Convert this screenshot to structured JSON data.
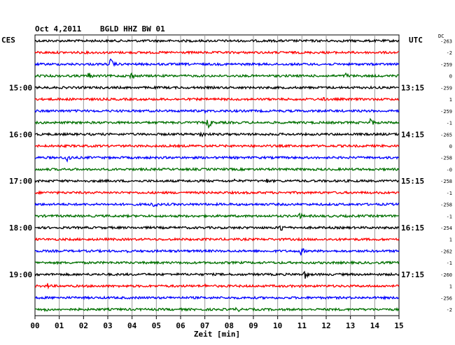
{
  "header": {
    "date": "Oct 4,2011",
    "station": "BGLD HHZ BW 01",
    "left_tz": "CES",
    "right_tz": "UTC",
    "dc_label": "DC"
  },
  "chart_data": {
    "type": "line",
    "title": "Oct 4,2011  BGLD HHZ BW 01",
    "xlabel": "Zeit [min]",
    "ylabel": "",
    "x_ticks": [
      "00",
      "01",
      "02",
      "03",
      "04",
      "05",
      "06",
      "07",
      "08",
      "09",
      "10",
      "11",
      "12",
      "13",
      "14",
      "15"
    ],
    "xlim": [
      0,
      15
    ],
    "grid": true,
    "trace_colors": [
      "#000000",
      "#ff0000",
      "#0000ff",
      "#007000"
    ],
    "left_time_labels": [
      {
        "row": 4,
        "label": "15:00"
      },
      {
        "row": 8,
        "label": "16:00"
      },
      {
        "row": 12,
        "label": "17:00"
      },
      {
        "row": 16,
        "label": "18:00"
      },
      {
        "row": 20,
        "label": "19:00"
      }
    ],
    "right_time_labels": [
      {
        "row": 4,
        "label": "13:15"
      },
      {
        "row": 8,
        "label": "14:15"
      },
      {
        "row": 12,
        "label": "15:15"
      },
      {
        "row": 16,
        "label": "16:15"
      },
      {
        "row": 20,
        "label": "17:15"
      }
    ],
    "dc_offsets": [
      "-263",
      "-2",
      "-259",
      "0",
      "-259",
      "1",
      "-259",
      "-1",
      "-265",
      "0",
      "-258",
      "-0",
      "-258",
      "-1",
      "-258",
      "-1",
      "-254",
      "1",
      "-262",
      "-1",
      "-260",
      "1",
      "-256",
      "-2"
    ],
    "events": [
      {
        "row": 2,
        "minute": 3.1,
        "amp": 9
      },
      {
        "row": 3,
        "minute": 2.2,
        "amp": 6
      },
      {
        "row": 3,
        "minute": 3.9,
        "amp": 8
      },
      {
        "row": 3,
        "minute": 12.8,
        "amp": 5
      },
      {
        "row": 5,
        "minute": 11.8,
        "amp": 5
      },
      {
        "row": 6,
        "minute": 7.0,
        "amp": 3
      },
      {
        "row": 7,
        "minute": 7.1,
        "amp": 10
      },
      {
        "row": 7,
        "minute": 13.8,
        "amp": 7
      },
      {
        "row": 8,
        "minute": 6.8,
        "amp": 8
      },
      {
        "row": 10,
        "minute": 1.3,
        "amp": 9
      },
      {
        "row": 10,
        "minute": 8.3,
        "amp": 3
      },
      {
        "row": 12,
        "minute": 9.5,
        "amp": 5
      },
      {
        "row": 12,
        "minute": 8.2,
        "amp": 3
      },
      {
        "row": 14,
        "minute": 4.8,
        "amp": 9
      },
      {
        "row": 15,
        "minute": 10.9,
        "amp": 5
      },
      {
        "row": 16,
        "minute": 10.1,
        "amp": 8
      },
      {
        "row": 18,
        "minute": 3.7,
        "amp": 4
      },
      {
        "row": 18,
        "minute": 10.9,
        "amp": 9
      },
      {
        "row": 20,
        "minute": 11.1,
        "amp": 8
      },
      {
        "row": 21,
        "minute": 0.5,
        "amp": 5
      },
      {
        "row": 21,
        "minute": 7.0,
        "amp": 3
      },
      {
        "row": 23,
        "minute": 0.4,
        "amp": 4
      },
      {
        "row": 23,
        "minute": 8.3,
        "amp": 5
      }
    ]
  }
}
